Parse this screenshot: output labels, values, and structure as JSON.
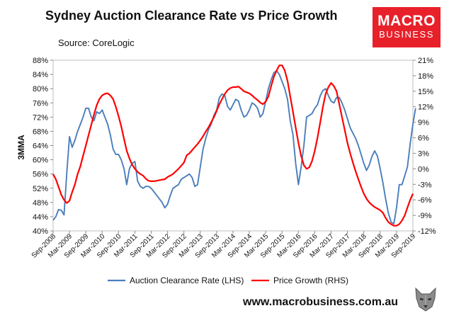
{
  "header": {
    "title": "Sydney Auction Clearance Rate vs Price Growth",
    "source": "Source: CoreLogic"
  },
  "logo": {
    "line1": "MACRO",
    "line2": "BUSINESS",
    "color": "#e8202a"
  },
  "footer": {
    "url": "www.macrobusiness.com.au"
  },
  "chart_data": {
    "type": "line",
    "title": "Sydney Auction Clearance Rate vs Price Growth",
    "ylabel": "3MMA",
    "y_left": {
      "min": 0.4,
      "max": 0.88,
      "step": 0.04,
      "ticks": [
        "40%",
        "44%",
        "48%",
        "52%",
        "56%",
        "60%",
        "64%",
        "68%",
        "72%",
        "76%",
        "80%",
        "84%",
        "88%"
      ]
    },
    "y_right": {
      "min": -0.12,
      "max": 0.21,
      "step": 0.03,
      "ticks": [
        "-12%",
        "-9%",
        "-6%",
        "-3%",
        "0%",
        "3%",
        "6%",
        "9%",
        "12%",
        "15%",
        "18%",
        "21%"
      ]
    },
    "x_range": [
      "2008-09",
      "2019-09"
    ],
    "x_ticks": [
      "Sep-2008",
      "Mar-2009",
      "Sep-2009",
      "Mar-2010",
      "Sep-2010",
      "Mar-2011",
      "Sep-2011",
      "Mar-2012",
      "Sep-2012",
      "Mar-2013",
      "Sep-2013",
      "Mar-2014",
      "Sep-2014",
      "Mar-2015",
      "Sep-2015",
      "Mar-2016",
      "Sep-2016",
      "Mar-2017",
      "Sep-2017",
      "Mar-2018",
      "Sep-2018",
      "Mar-2019",
      "Sep-2019"
    ],
    "legend": {
      "placement": "bottom",
      "items": [
        "Auction Clearance Rate (LHS)",
        "Price Growth (RHS)"
      ]
    },
    "series": [
      {
        "name": "Auction Clearance Rate (LHS)",
        "axis": "left",
        "color": "#4a7ebb",
        "points": [
          [
            "2008-09",
            0.43
          ],
          [
            "2008-10",
            0.44
          ],
          [
            "2008-11",
            0.46
          ],
          [
            "2008-12",
            0.458
          ],
          [
            "2009-01",
            0.445
          ],
          [
            "2009-02",
            0.56
          ],
          [
            "2009-03",
            0.665
          ],
          [
            "2009-04",
            0.635
          ],
          [
            "2009-05",
            0.655
          ],
          [
            "2009-06",
            0.68
          ],
          [
            "2009-07",
            0.7
          ],
          [
            "2009-08",
            0.72
          ],
          [
            "2009-09",
            0.745
          ],
          [
            "2009-10",
            0.745
          ],
          [
            "2009-11",
            0.72
          ],
          [
            "2009-12",
            0.71
          ],
          [
            "2010-01",
            0.735
          ],
          [
            "2010-02",
            0.73
          ],
          [
            "2010-03",
            0.74
          ],
          [
            "2010-04",
            0.72
          ],
          [
            "2010-05",
            0.7
          ],
          [
            "2010-06",
            0.67
          ],
          [
            "2010-07",
            0.63
          ],
          [
            "2010-08",
            0.615
          ],
          [
            "2010-09",
            0.615
          ],
          [
            "2010-10",
            0.6
          ],
          [
            "2010-11",
            0.575
          ],
          [
            "2010-12",
            0.53
          ],
          [
            "2011-01",
            0.575
          ],
          [
            "2011-02",
            0.59
          ],
          [
            "2011-03",
            0.595
          ],
          [
            "2011-04",
            0.54
          ],
          [
            "2011-05",
            0.525
          ],
          [
            "2011-06",
            0.52
          ],
          [
            "2011-07",
            0.525
          ],
          [
            "2011-08",
            0.525
          ],
          [
            "2011-09",
            0.52
          ],
          [
            "2011-10",
            0.51
          ],
          [
            "2011-11",
            0.5
          ],
          [
            "2011-12",
            0.49
          ],
          [
            "2012-01",
            0.48
          ],
          [
            "2012-02",
            0.465
          ],
          [
            "2012-03",
            0.475
          ],
          [
            "2012-04",
            0.5
          ],
          [
            "2012-05",
            0.52
          ],
          [
            "2012-06",
            0.525
          ],
          [
            "2012-07",
            0.53
          ],
          [
            "2012-08",
            0.545
          ],
          [
            "2012-09",
            0.55
          ],
          [
            "2012-10",
            0.555
          ],
          [
            "2012-11",
            0.56
          ],
          [
            "2012-12",
            0.55
          ],
          [
            "2013-01",
            0.525
          ],
          [
            "2013-02",
            0.53
          ],
          [
            "2013-03",
            0.58
          ],
          [
            "2013-04",
            0.63
          ],
          [
            "2013-05",
            0.66
          ],
          [
            "2013-06",
            0.685
          ],
          [
            "2013-07",
            0.7
          ],
          [
            "2013-08",
            0.725
          ],
          [
            "2013-09",
            0.74
          ],
          [
            "2013-10",
            0.775
          ],
          [
            "2013-11",
            0.785
          ],
          [
            "2013-12",
            0.78
          ],
          [
            "2014-01",
            0.75
          ],
          [
            "2014-02",
            0.74
          ],
          [
            "2014-03",
            0.755
          ],
          [
            "2014-04",
            0.77
          ],
          [
            "2014-05",
            0.765
          ],
          [
            "2014-06",
            0.74
          ],
          [
            "2014-07",
            0.72
          ],
          [
            "2014-08",
            0.725
          ],
          [
            "2014-09",
            0.74
          ],
          [
            "2014-10",
            0.76
          ],
          [
            "2014-11",
            0.755
          ],
          [
            "2014-12",
            0.745
          ],
          [
            "2015-01",
            0.72
          ],
          [
            "2015-02",
            0.73
          ],
          [
            "2015-03",
            0.765
          ],
          [
            "2015-04",
            0.8
          ],
          [
            "2015-05",
            0.825
          ],
          [
            "2015-06",
            0.845
          ],
          [
            "2015-07",
            0.85
          ],
          [
            "2015-08",
            0.84
          ],
          [
            "2015-09",
            0.82
          ],
          [
            "2015-10",
            0.8
          ],
          [
            "2015-11",
            0.77
          ],
          [
            "2015-12",
            0.71
          ],
          [
            "2016-01",
            0.67
          ],
          [
            "2016-02",
            0.59
          ],
          [
            "2016-03",
            0.53
          ],
          [
            "2016-04",
            0.58
          ],
          [
            "2016-05",
            0.64
          ],
          [
            "2016-06",
            0.72
          ],
          [
            "2016-07",
            0.725
          ],
          [
            "2016-08",
            0.73
          ],
          [
            "2016-09",
            0.745
          ],
          [
            "2016-10",
            0.755
          ],
          [
            "2016-11",
            0.78
          ],
          [
            "2016-12",
            0.795
          ],
          [
            "2017-01",
            0.8
          ],
          [
            "2017-02",
            0.78
          ],
          [
            "2017-03",
            0.765
          ],
          [
            "2017-04",
            0.76
          ],
          [
            "2017-05",
            0.775
          ],
          [
            "2017-06",
            0.775
          ],
          [
            "2017-07",
            0.76
          ],
          [
            "2017-08",
            0.74
          ],
          [
            "2017-09",
            0.715
          ],
          [
            "2017-10",
            0.69
          ],
          [
            "2017-11",
            0.675
          ],
          [
            "2017-12",
            0.66
          ],
          [
            "2018-01",
            0.64
          ],
          [
            "2018-02",
            0.615
          ],
          [
            "2018-03",
            0.59
          ],
          [
            "2018-04",
            0.57
          ],
          [
            "2018-05",
            0.585
          ],
          [
            "2018-06",
            0.61
          ],
          [
            "2018-07",
            0.625
          ],
          [
            "2018-08",
            0.61
          ],
          [
            "2018-09",
            0.575
          ],
          [
            "2018-10",
            0.535
          ],
          [
            "2018-11",
            0.49
          ],
          [
            "2018-12",
            0.45
          ],
          [
            "2019-01",
            0.425
          ],
          [
            "2019-02",
            0.42
          ],
          [
            "2019-03",
            0.465
          ],
          [
            "2019-04",
            0.53
          ],
          [
            "2019-05",
            0.53
          ],
          [
            "2019-06",
            0.555
          ],
          [
            "2019-07",
            0.58
          ],
          [
            "2019-08",
            0.645
          ],
          [
            "2019-09",
            0.7
          ],
          [
            "2019-10",
            0.745
          ]
        ]
      },
      {
        "name": "Price Growth (RHS)",
        "axis": "right",
        "color": "#ff0000",
        "points": [
          [
            "2008-09",
            -0.01
          ],
          [
            "2008-10",
            -0.02
          ],
          [
            "2008-11",
            -0.035
          ],
          [
            "2008-12",
            -0.05
          ],
          [
            "2009-01",
            -0.06
          ],
          [
            "2009-02",
            -0.066
          ],
          [
            "2009-03",
            -0.062
          ],
          [
            "2009-04",
            -0.045
          ],
          [
            "2009-05",
            -0.03
          ],
          [
            "2009-06",
            -0.01
          ],
          [
            "2009-07",
            0.005
          ],
          [
            "2009-08",
            0.025
          ],
          [
            "2009-09",
            0.045
          ],
          [
            "2009-10",
            0.065
          ],
          [
            "2009-11",
            0.085
          ],
          [
            "2009-12",
            0.105
          ],
          [
            "2010-01",
            0.123
          ],
          [
            "2010-02",
            0.135
          ],
          [
            "2010-03",
            0.142
          ],
          [
            "2010-04",
            0.145
          ],
          [
            "2010-05",
            0.146
          ],
          [
            "2010-06",
            0.142
          ],
          [
            "2010-07",
            0.135
          ],
          [
            "2010-08",
            0.12
          ],
          [
            "2010-09",
            0.102
          ],
          [
            "2010-10",
            0.082
          ],
          [
            "2010-11",
            0.058
          ],
          [
            "2010-12",
            0.035
          ],
          [
            "2011-01",
            0.02
          ],
          [
            "2011-02",
            0.008
          ],
          [
            "2011-03",
            0.0
          ],
          [
            "2011-04",
            -0.006
          ],
          [
            "2011-05",
            -0.01
          ],
          [
            "2011-06",
            -0.013
          ],
          [
            "2011-07",
            -0.019
          ],
          [
            "2011-08",
            -0.023
          ],
          [
            "2011-09",
            -0.024
          ],
          [
            "2011-10",
            -0.024
          ],
          [
            "2011-11",
            -0.023
          ],
          [
            "2011-12",
            -0.022
          ],
          [
            "2012-01",
            -0.021
          ],
          [
            "2012-02",
            -0.02
          ],
          [
            "2012-03",
            -0.016
          ],
          [
            "2012-04",
            -0.013
          ],
          [
            "2012-05",
            -0.01
          ],
          [
            "2012-06",
            -0.005
          ],
          [
            "2012-07",
            0.0
          ],
          [
            "2012-08",
            0.006
          ],
          [
            "2012-09",
            0.012
          ],
          [
            "2012-10",
            0.026
          ],
          [
            "2012-11",
            0.03
          ],
          [
            "2012-12",
            0.036
          ],
          [
            "2013-01",
            0.042
          ],
          [
            "2013-02",
            0.048
          ],
          [
            "2013-03",
            0.055
          ],
          [
            "2013-04",
            0.063
          ],
          [
            "2013-05",
            0.072
          ],
          [
            "2013-06",
            0.08
          ],
          [
            "2013-07",
            0.09
          ],
          [
            "2013-08",
            0.1
          ],
          [
            "2013-09",
            0.112
          ],
          [
            "2013-10",
            0.125
          ],
          [
            "2013-11",
            0.135
          ],
          [
            "2013-12",
            0.145
          ],
          [
            "2014-01",
            0.152
          ],
          [
            "2014-02",
            0.156
          ],
          [
            "2014-03",
            0.158
          ],
          [
            "2014-04",
            0.158
          ],
          [
            "2014-05",
            0.159
          ],
          [
            "2014-06",
            0.155
          ],
          [
            "2014-07",
            0.15
          ],
          [
            "2014-08",
            0.148
          ],
          [
            "2014-09",
            0.146
          ],
          [
            "2014-10",
            0.142
          ],
          [
            "2014-11",
            0.137
          ],
          [
            "2014-12",
            0.133
          ],
          [
            "2015-01",
            0.128
          ],
          [
            "2015-02",
            0.125
          ],
          [
            "2015-03",
            0.13
          ],
          [
            "2015-04",
            0.14
          ],
          [
            "2015-05",
            0.16
          ],
          [
            "2015-06",
            0.178
          ],
          [
            "2015-07",
            0.19
          ],
          [
            "2015-08",
            0.2
          ],
          [
            "2015-09",
            0.2
          ],
          [
            "2015-10",
            0.19
          ],
          [
            "2015-11",
            0.17
          ],
          [
            "2015-12",
            0.14
          ],
          [
            "2016-01",
            0.11
          ],
          [
            "2016-02",
            0.08
          ],
          [
            "2016-03",
            0.05
          ],
          [
            "2016-04",
            0.025
          ],
          [
            "2016-05",
            0.007
          ],
          [
            "2016-06",
            0.0
          ],
          [
            "2016-07",
            0.003
          ],
          [
            "2016-08",
            0.015
          ],
          [
            "2016-09",
            0.035
          ],
          [
            "2016-10",
            0.06
          ],
          [
            "2016-11",
            0.09
          ],
          [
            "2016-12",
            0.12
          ],
          [
            "2017-01",
            0.145
          ],
          [
            "2017-02",
            0.158
          ],
          [
            "2017-03",
            0.166
          ],
          [
            "2017-04",
            0.16
          ],
          [
            "2017-05",
            0.15
          ],
          [
            "2017-06",
            0.125
          ],
          [
            "2017-07",
            0.1
          ],
          [
            "2017-08",
            0.075
          ],
          [
            "2017-09",
            0.05
          ],
          [
            "2017-10",
            0.03
          ],
          [
            "2017-11",
            0.012
          ],
          [
            "2017-12",
            -0.005
          ],
          [
            "2018-01",
            -0.02
          ],
          [
            "2018-02",
            -0.035
          ],
          [
            "2018-03",
            -0.048
          ],
          [
            "2018-04",
            -0.058
          ],
          [
            "2018-05",
            -0.065
          ],
          [
            "2018-06",
            -0.07
          ],
          [
            "2018-07",
            -0.074
          ],
          [
            "2018-08",
            -0.077
          ],
          [
            "2018-09",
            -0.08
          ],
          [
            "2018-10",
            -0.085
          ],
          [
            "2018-11",
            -0.095
          ],
          [
            "2018-12",
            -0.103
          ],
          [
            "2019-01",
            -0.107
          ],
          [
            "2019-02",
            -0.11
          ],
          [
            "2019-03",
            -0.11
          ],
          [
            "2019-04",
            -0.107
          ],
          [
            "2019-05",
            -0.1
          ],
          [
            "2019-06",
            -0.09
          ],
          [
            "2019-07",
            -0.075
          ],
          [
            "2019-08",
            -0.06
          ],
          [
            "2019-09",
            -0.048
          ]
        ]
      }
    ]
  }
}
